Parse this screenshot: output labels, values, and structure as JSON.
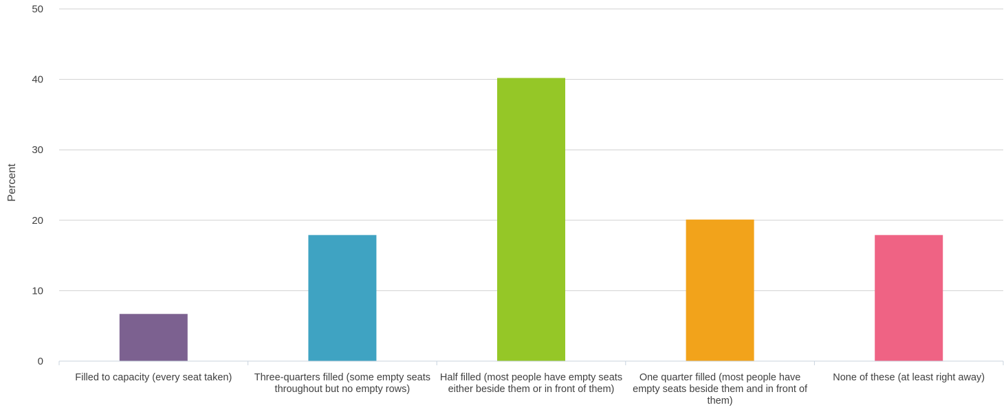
{
  "chart_data": {
    "type": "bar",
    "title": "",
    "xlabel": "",
    "ylabel": "Percent",
    "ylim": [
      0,
      50
    ],
    "yticks": [
      0,
      10,
      20,
      30,
      40,
      50
    ],
    "grid": true,
    "categories": [
      "Filled to capacity (every seat taken)",
      "Three-quarters filled (some empty seats throughout but no empty rows)",
      "Half filled (most people have empty seats either beside them or in front of them)",
      "One quarter filled (most people have empty seats beside them and in front of them)",
      "None of these (at least right away)"
    ],
    "values": [
      6.7,
      17.9,
      40.2,
      20.1,
      17.9
    ],
    "colors": [
      "#7c6190",
      "#3fa3c2",
      "#95c727",
      "#f2a31b",
      "#ef6384"
    ]
  }
}
